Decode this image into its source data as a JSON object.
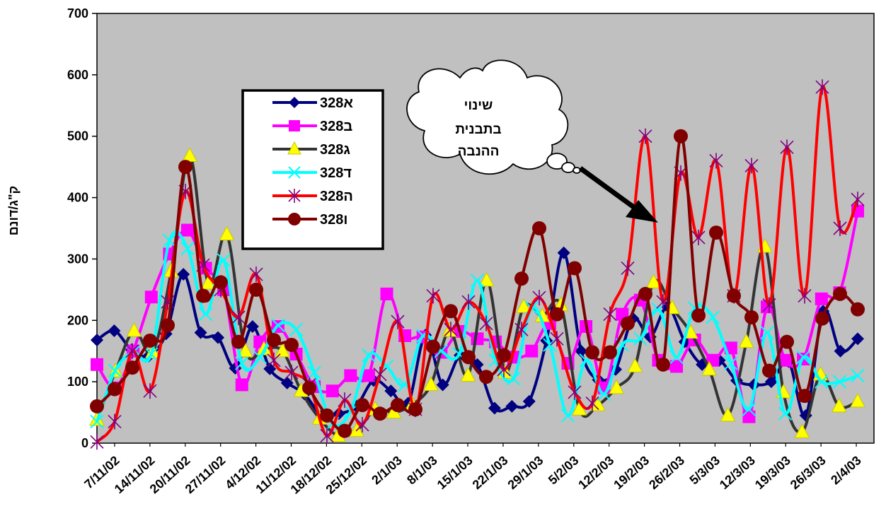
{
  "chart_data": {
    "type": "line",
    "ylabel": "ק\"ג/דונם",
    "ylim": [
      0,
      700
    ],
    "ytick_step": 100,
    "grid": false,
    "plot_background": "#c0c0c0",
    "legend_position": "top-left",
    "x_tick_labels": [
      "7/11/02",
      "14/11/02",
      "20/11/02",
      "27/11/02",
      "4/12/02",
      "11/12/02",
      "18/12/02",
      "25/12/02",
      "2/1/03",
      "8/1/03",
      "15/1/03",
      "22/1/03",
      "29/1/03",
      "5/2/03",
      "12/2/03",
      "19/2/03",
      "26/2/03",
      "5/3/03",
      "12/3/03",
      "19/3/03",
      "26/3/03",
      "2/4/03"
    ],
    "annotation": {
      "lines": [
        "שינוי",
        "בתבנית",
        "ההנבה"
      ]
    },
    "series": [
      {
        "name": "328א",
        "color": "#000080",
        "marker": "diamond",
        "values": [
          168,
          183,
          152,
          142,
          178,
          275,
          180,
          172,
          122,
          190,
          121,
          98,
          80,
          45,
          48,
          60,
          102,
          85,
          65,
          176,
          95,
          143,
          128,
          57,
          60,
          68,
          167,
          310,
          150,
          103,
          120,
          203,
          173,
          222,
          165,
          128,
          135,
          102,
          95,
          100,
          133,
          45,
          215,
          150,
          170
        ]
      },
      {
        "name": "328ב",
        "color": "#ff00ff",
        "marker": "square",
        "values": [
          128,
          90,
          150,
          238,
          308,
          347,
          285,
          250,
          95,
          165,
          190,
          145,
          92,
          85,
          110,
          110,
          243,
          175,
          173,
          148,
          182,
          170,
          165,
          140,
          150,
          195,
          130,
          190,
          90,
          210,
          233,
          135,
          125,
          168,
          135,
          155,
          43,
          222,
          135,
          137,
          235,
          245,
          378
        ]
      },
      {
        "name": "328ג",
        "color": "#333333",
        "marker": "triangle",
        "values": [
          38,
          117,
          183,
          148,
          280,
          468,
          260,
          340,
          150,
          153,
          150,
          85,
          40,
          12,
          20,
          55,
          50,
          63,
          95,
          183,
          110,
          265,
          115,
          222,
          207,
          225,
          55,
          62,
          90,
          125,
          262,
          220,
          180,
          120,
          45,
          165,
          320,
          83,
          18,
          112,
          60,
          68
        ]
      },
      {
        "name": "328ד",
        "color": "#00ffff",
        "marker": "x",
        "values": [
          35,
          118,
          148,
          145,
          330,
          317,
          210,
          298,
          130,
          140,
          192,
          185,
          115,
          32,
          52,
          143,
          125,
          95,
          175,
          150,
          145,
          265,
          135,
          105,
          220,
          160,
          45,
          135,
          80,
          160,
          170,
          218,
          140,
          220,
          205,
          130,
          55,
          180,
          48,
          140,
          100,
          100,
          110
        ]
      },
      {
        "name": "328ה",
        "color": "#ff0000",
        "marker": "star",
        "values": [
          2,
          35,
          150,
          85,
          230,
          410,
          290,
          250,
          205,
          275,
          135,
          115,
          95,
          12,
          70,
          30,
          112,
          198,
          55,
          240,
          185,
          230,
          195,
          120,
          185,
          237,
          170,
          83,
          65,
          210,
          285,
          500,
          230,
          440,
          335,
          460,
          240,
          452,
          225,
          482,
          240,
          580,
          350,
          397
        ]
      },
      {
        "name": "328ו",
        "color": "#800000",
        "marker": "circle",
        "values": [
          60,
          88,
          123,
          167,
          192,
          450,
          240,
          262,
          165,
          250,
          168,
          160,
          90,
          45,
          20,
          62,
          48,
          62,
          55,
          157,
          215,
          140,
          108,
          143,
          268,
          350,
          210,
          285,
          148,
          148,
          195,
          243,
          128,
          500,
          208,
          343,
          240,
          205,
          118,
          165,
          77,
          203,
          243,
          218
        ]
      }
    ]
  }
}
